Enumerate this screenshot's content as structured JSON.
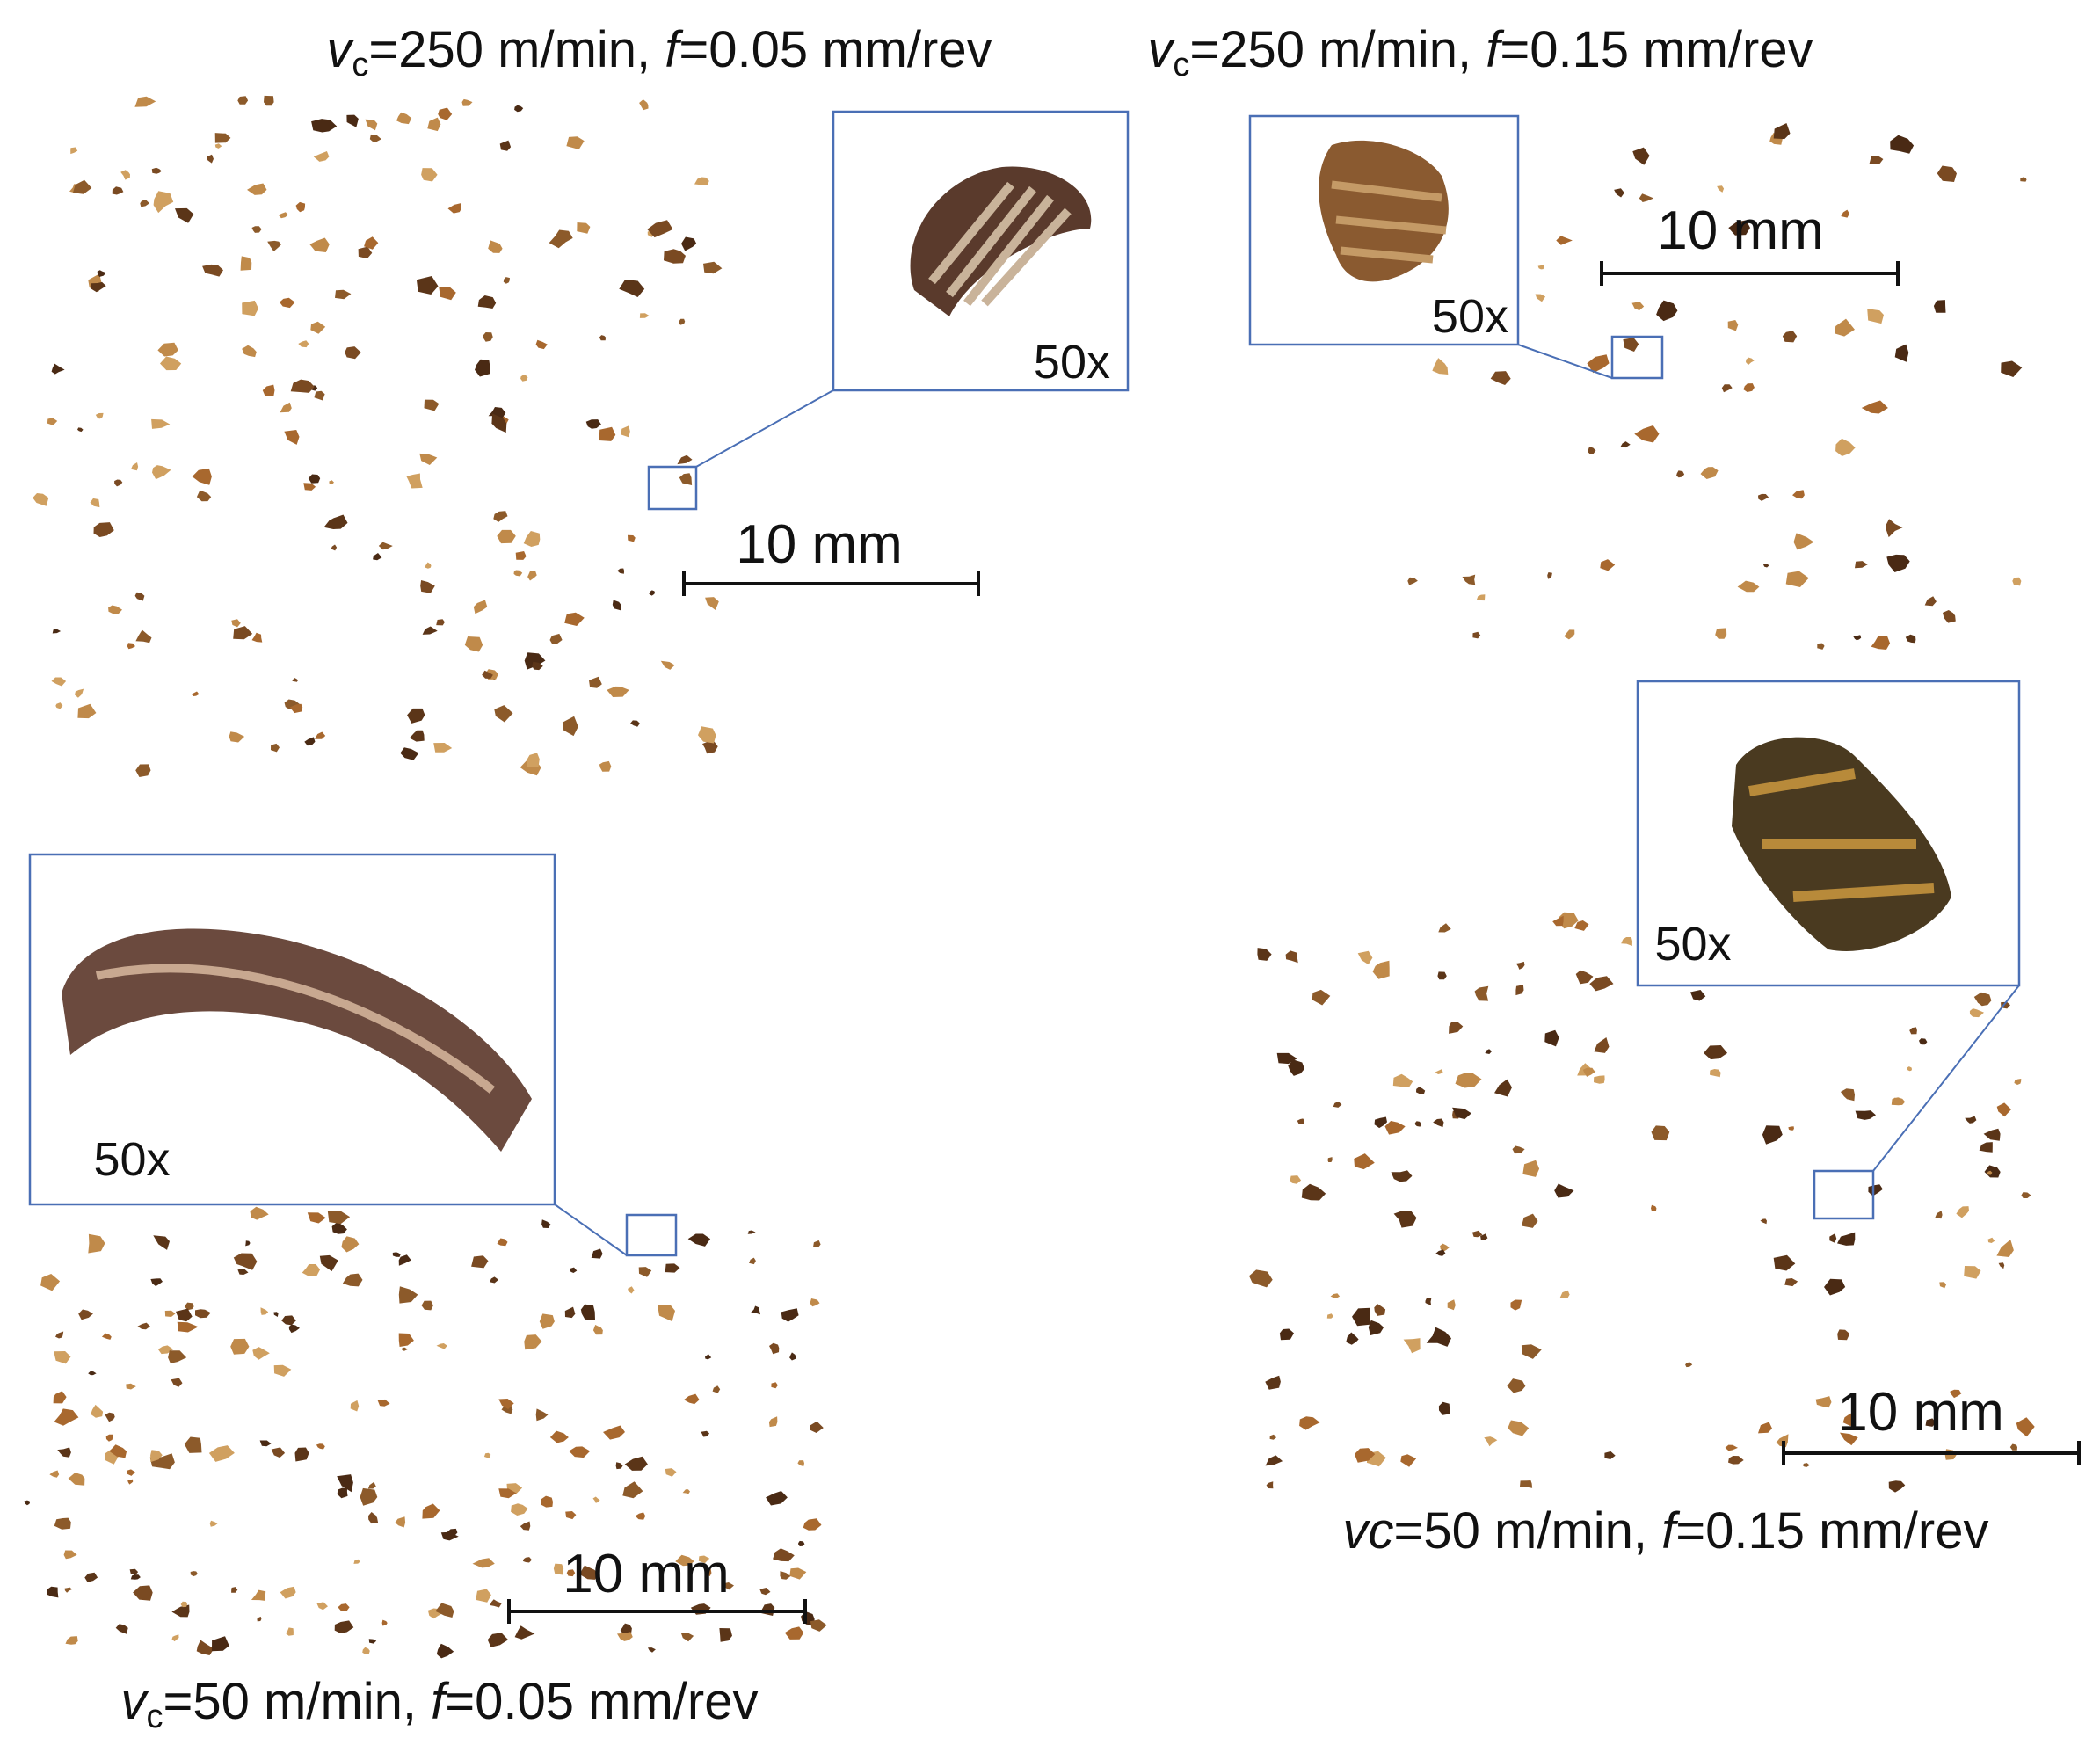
{
  "panels": [
    {
      "caption": {
        "v": "v",
        "c": "c",
        "speed": "=250 m/min, ",
        "f": "f",
        "feed": "=0.05 mm/rev"
      },
      "magnification": "50x",
      "scale_bar": "10 mm"
    },
    {
      "caption": {
        "v": "v",
        "c": "c",
        "speed": "=250 m/min, ",
        "f": "f",
        "feed": "=0.15 mm/rev"
      },
      "magnification": "50x",
      "scale_bar": "10 mm"
    },
    {
      "caption": {
        "v": "v",
        "c": "c",
        "speed": "=50 m/min, ",
        "f": "f",
        "feed": "=0.05 mm/rev"
      },
      "magnification": "50x",
      "scale_bar": "10 mm"
    },
    {
      "caption": {
        "v": "v",
        "c": "c",
        "speed": "=50 m/min, ",
        "f": "f",
        "feed": "=0.15 mm/rev"
      },
      "magnification": "50x",
      "scale_bar": "10 mm"
    }
  ]
}
